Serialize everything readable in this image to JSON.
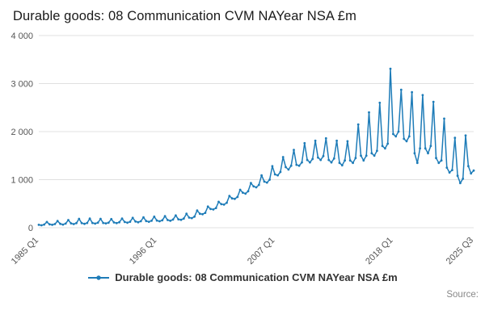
{
  "header": {
    "title": "Durable goods: 08 Communication CVM NAYear NSA £m"
  },
  "legend": {
    "label": "Durable goods: 08 Communication CVM NAYear NSA £m"
  },
  "footer": {
    "source_label": "Source:"
  },
  "colors": {
    "line": "#1e7cb8",
    "grid": "#e0e0e0",
    "axis_text": "#555555"
  },
  "chart_data": {
    "type": "line",
    "title": "Durable goods: 08 Communication CVM NAYear NSA £m",
    "xlabel": "",
    "ylabel": "",
    "ylim": [
      0,
      4000
    ],
    "yticks": [
      0,
      1000,
      2000,
      3000,
      4000
    ],
    "ytick_labels": [
      "0",
      "1 000",
      "2 000",
      "3 000",
      "4 000"
    ],
    "x_unit": "quarter",
    "x_start": "1985 Q1",
    "x_end": "2025 Q3",
    "xticks": [
      {
        "index": 0,
        "label": "1985 Q1"
      },
      {
        "index": 44,
        "label": "1996 Q1"
      },
      {
        "index": 88,
        "label": "2007 Q1"
      },
      {
        "index": 132,
        "label": "2018 Q1"
      },
      {
        "index": 162,
        "label": "2025 Q3"
      }
    ],
    "grid": true,
    "legend_position": "bottom",
    "series": [
      {
        "name": "Durable goods: 08 Communication CVM NAYear NSA £m",
        "values": [
          60,
          50,
          65,
          120,
          70,
          60,
          75,
          140,
          80,
          65,
          85,
          160,
          90,
          75,
          95,
          185,
          95,
          80,
          100,
          190,
          100,
          85,
          105,
          185,
          100,
          90,
          105,
          180,
          110,
          95,
          115,
          190,
          120,
          105,
          125,
          205,
          130,
          115,
          135,
          215,
          140,
          125,
          145,
          230,
          150,
          135,
          155,
          240,
          160,
          145,
          170,
          255,
          175,
          165,
          190,
          290,
          210,
          200,
          230,
          360,
          290,
          280,
          310,
          440,
          390,
          380,
          410,
          540,
          490,
          480,
          520,
          660,
          610,
          600,
          640,
          790,
          730,
          710,
          760,
          930,
          860,
          840,
          890,
          1090,
          960,
          940,
          1000,
          1280,
          1110,
          1090,
          1160,
          1470,
          1260,
          1210,
          1290,
          1620,
          1310,
          1290,
          1360,
          1760,
          1410,
          1360,
          1430,
          1810,
          1460,
          1410,
          1490,
          1860,
          1410,
          1360,
          1440,
          1810,
          1350,
          1300,
          1400,
          1800,
          1400,
          1350,
          1450,
          2150,
          1500,
          1400,
          1500,
          2400,
          1550,
          1500,
          1600,
          2600,
          1700,
          1650,
          1750,
          3310,
          1950,
          1900,
          2000,
          2870,
          1850,
          1800,
          1900,
          2820,
          1550,
          1350,
          1650,
          2760,
          1650,
          1550,
          1700,
          2620,
          1450,
          1350,
          1400,
          2270,
          1250,
          1150,
          1200,
          1870,
          1080,
          930,
          1020,
          1920,
          1280,
          1130,
          1190
        ]
      }
    ]
  }
}
